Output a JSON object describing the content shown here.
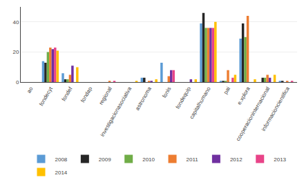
{
  "chart_data": {
    "type": "bar",
    "categories": [
      "ao",
      "fondecyt",
      "fondef",
      "fondap",
      "regional",
      "investigacionasociativa",
      "astronoma",
      "fonis",
      "fondequip",
      "capitalhumano",
      "pai",
      "e.xplora",
      "cooperacioninternacional",
      "informacioncientifica"
    ],
    "series": [
      {
        "name": "2008",
        "color": "#5b9bd5",
        "values": [
          0,
          14,
          6,
          0,
          0,
          0,
          3,
          13,
          0,
          39,
          1,
          29,
          0,
          1
        ]
      },
      {
        "name": "2009",
        "color": "#262626",
        "values": [
          0,
          13,
          2,
          0,
          0,
          0,
          3,
          0,
          0,
          46,
          1,
          39,
          3,
          1
        ]
      },
      {
        "name": "2010",
        "color": "#70ad47",
        "values": [
          0,
          20,
          2,
          0,
          0,
          0,
          0,
          0,
          0,
          36,
          1,
          30,
          3,
          0
        ]
      },
      {
        "name": "2011",
        "color": "#ed7d31",
        "values": [
          0,
          23,
          5,
          0,
          1,
          0,
          1,
          4,
          0,
          36,
          8,
          44,
          5,
          1
        ]
      },
      {
        "name": "2012",
        "color": "#7030a0",
        "values": [
          0,
          22,
          11,
          0,
          0,
          0,
          1,
          8,
          2,
          36,
          0,
          0,
          3,
          0
        ]
      },
      {
        "name": "2013",
        "color": "#e84488",
        "values": [
          0,
          23,
          0,
          0,
          1,
          0,
          0,
          8,
          0,
          36,
          3,
          0,
          0,
          1
        ]
      },
      {
        "name": "2014",
        "color": "#ffc000",
        "values": [
          0,
          21,
          10,
          0,
          0,
          1,
          2,
          0,
          2,
          40,
          5,
          2,
          5,
          0
        ]
      }
    ],
    "ylim": [
      0,
      50
    ],
    "yticks": [
      0,
      20,
      40
    ],
    "grid": true,
    "legend": "bottom"
  }
}
